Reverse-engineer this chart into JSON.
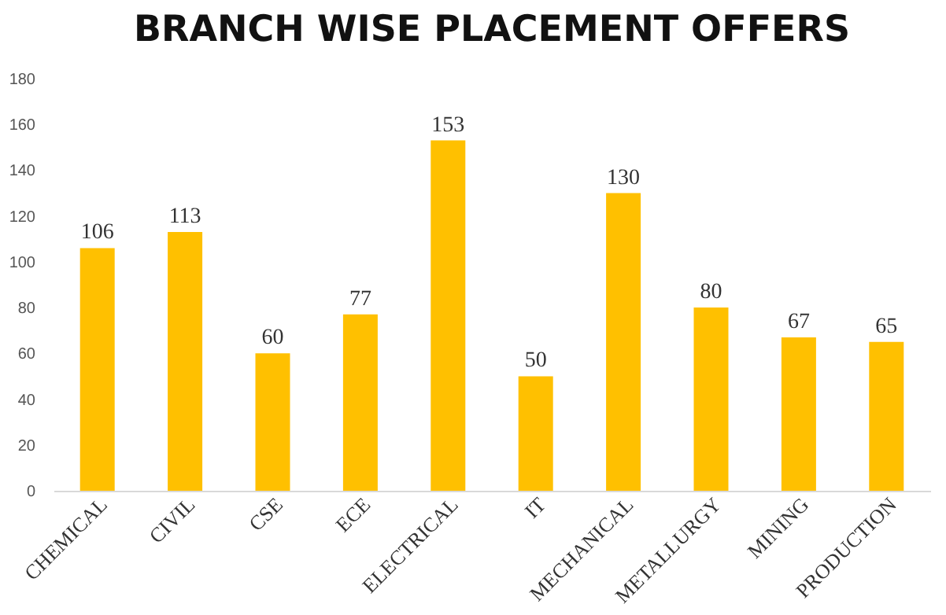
{
  "chart_data": {
    "type": "bar",
    "title": "BRANCH WISE PLACEMENT OFFERS",
    "categories": [
      "CHEMICAL",
      "CIVIL",
      "CSE",
      "ECE",
      "ELECTRICAL",
      "IT",
      "MECHANICAL",
      "METALLURGY",
      "MINING",
      "PRODUCTION"
    ],
    "values": [
      106,
      113,
      60,
      77,
      153,
      50,
      130,
      80,
      67,
      65
    ],
    "color": "#ffc000",
    "ylim": [
      0,
      180
    ],
    "yticks": [
      0,
      20,
      40,
      60,
      80,
      100,
      120,
      140,
      160,
      180
    ],
    "grid": false,
    "data_labels": true
  }
}
